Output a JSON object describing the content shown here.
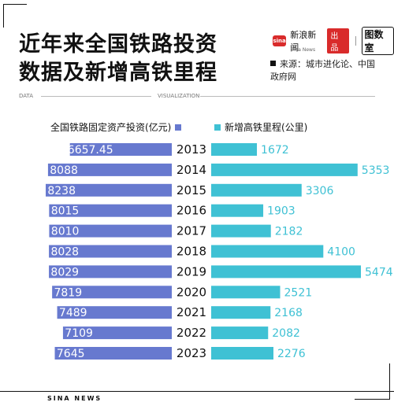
{
  "title_line1": "近年来全国铁路投资",
  "title_line2": "数据及新增高铁里程",
  "brand": {
    "logo_text": "sina",
    "name": "新浪新闻",
    "sub": "Sina News",
    "produce": "出品",
    "brand2": "图数室"
  },
  "source": "来源：城市进化论、中国政府网",
  "subtitle_left": "DATA",
  "subtitle_right": "VISUALIZATION",
  "footer": "SINA NEWS",
  "colors": {
    "left": "#6779cf",
    "right": "#3fc1d4",
    "accent": "#d92b2b"
  },
  "chart_data": {
    "type": "bar",
    "categories": [
      "2013",
      "2014",
      "2015",
      "2016",
      "2017",
      "2018",
      "2019",
      "2020",
      "2021",
      "2022",
      "2023"
    ],
    "series": [
      {
        "name": "全国铁路固定资产投资(亿元)",
        "values": [
          6657.45,
          8088,
          8238,
          8015,
          8010,
          8028,
          8029,
          7819,
          7489,
          7109,
          7645
        ],
        "labels": [
          "6657.45",
          "8088",
          "8238",
          "8015",
          "8010",
          "8028",
          "8029",
          "7819",
          "7489",
          "7109",
          "7645"
        ]
      },
      {
        "name": "新增高铁里程(公里)",
        "values": [
          1672,
          5353,
          3306,
          1903,
          2182,
          4100,
          5474,
          2521,
          2168,
          2082,
          2276
        ],
        "labels": [
          "1672",
          "5353",
          "3306",
          "1903",
          "2182",
          "4100",
          "5474",
          "2521",
          "2168",
          "2082",
          "2276"
        ]
      }
    ]
  }
}
